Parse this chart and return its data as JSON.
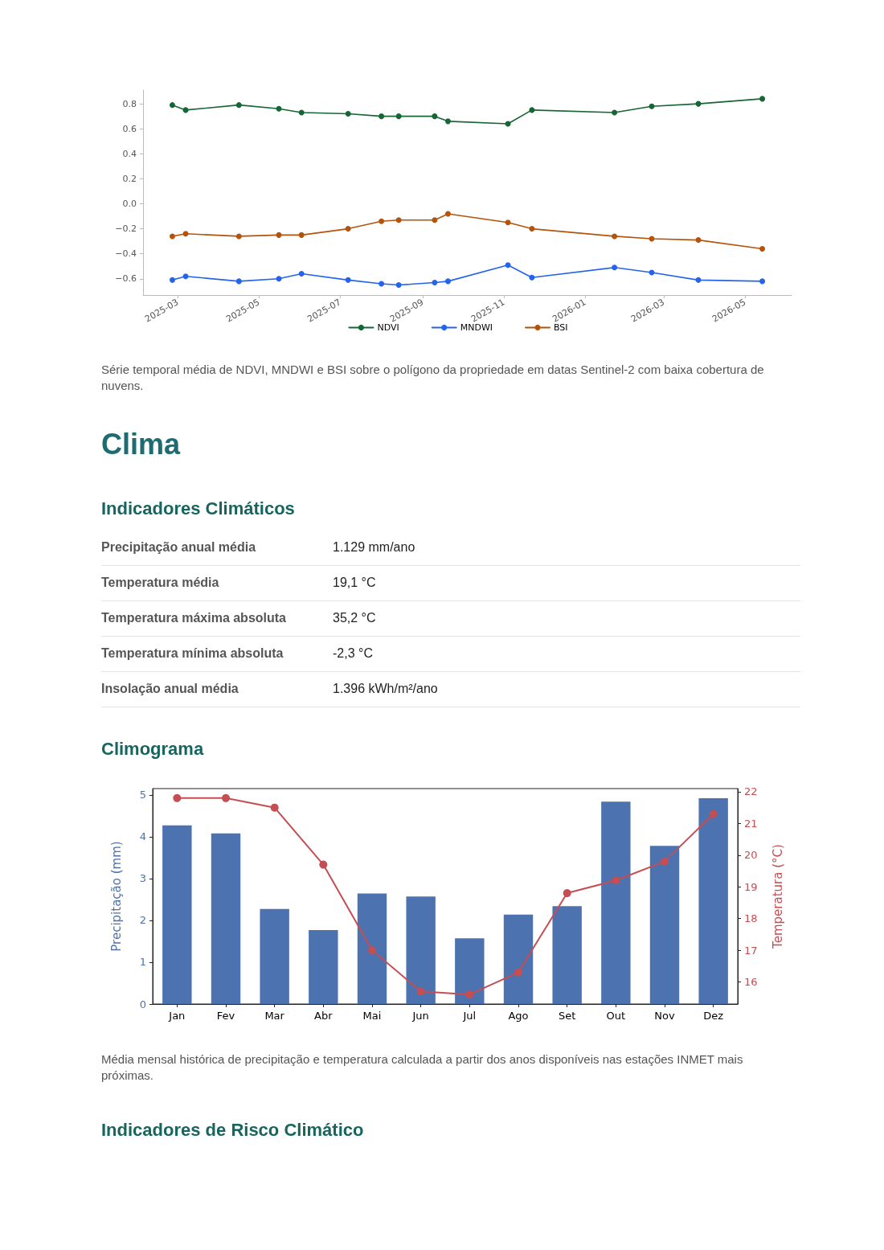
{
  "chart_data": [
    {
      "type": "line",
      "x": [
        "2025-02-25",
        "2025-03-07",
        "2025-04-16",
        "2025-05-16",
        "2025-06-02",
        "2025-07-07",
        "2025-08-01",
        "2025-08-14",
        "2025-09-10",
        "2025-09-20",
        "2025-11-04",
        "2025-11-22",
        "2026-01-23",
        "2026-02-20",
        "2026-03-27",
        "2026-05-14"
      ],
      "series": [
        {
          "name": "NDVI",
          "color": "#166534",
          "values": [
            0.79,
            0.75,
            0.79,
            0.76,
            0.73,
            0.72,
            0.7,
            0.7,
            0.7,
            0.66,
            0.64,
            0.75,
            0.73,
            0.78,
            0.8,
            0.84
          ]
        },
        {
          "name": "MNDWI",
          "color": "#2563eb",
          "values": [
            -0.61,
            -0.58,
            -0.62,
            -0.6,
            -0.56,
            -0.61,
            -0.64,
            -0.65,
            -0.63,
            -0.62,
            -0.49,
            -0.59,
            -0.51,
            -0.55,
            -0.61,
            -0.62
          ]
        },
        {
          "name": "BSI",
          "color": "#b45309",
          "values": [
            -0.26,
            -0.24,
            -0.26,
            -0.25,
            -0.25,
            -0.2,
            -0.14,
            -0.13,
            -0.13,
            -0.08,
            -0.15,
            -0.2,
            -0.26,
            -0.28,
            -0.29,
            -0.36
          ]
        }
      ],
      "xlim": [
        "2025-02-03",
        "2026-06-05"
      ],
      "xticks": [
        "2025-03",
        "2025-05",
        "2025-07",
        "2025-09",
        "2025-11",
        "2026-01",
        "2026-03",
        "2026-05"
      ],
      "ylim": [
        -0.73,
        0.91
      ],
      "yticks": [
        {
          "value": -0.6,
          "label": "−0.6"
        },
        {
          "value": -0.4,
          "label": "−0.4"
        },
        {
          "value": -0.2,
          "label": "−0.2"
        },
        {
          "value": 0,
          "label": "0.0"
        },
        0.2,
        0.4,
        0.6,
        0.8
      ],
      "marker": "circle",
      "grid": false,
      "legend": "bottom",
      "annotations": [
        "Série temporal média de NDVI, MNDWI e BSI sobre o polígono da propriedade em datas Sentinel-2 com baixa cobertura de nuvens."
      ]
    },
    {
      "type": "other",
      "title": "Clima",
      "subtitle": "Indicadores Climáticos",
      "annotations": [
        "Precipitação anual média",
        "1.129 mm/ano",
        "Temperatura média",
        "19,1 °C",
        "Temperatura máxima absoluta",
        "35,2 °C",
        "Temperatura mínima absoluta",
        "-2,3 °C",
        "Insolação anual média",
        "1.396 kWh/m²/ano"
      ]
    },
    {
      "type": "bar",
      "title": "Climograma",
      "categories": [
        "Jan",
        "Fev",
        "Mar",
        "Abr",
        "Mai",
        "Jun",
        "Jul",
        "Ago",
        "Set",
        "Out",
        "Nov",
        "Dez"
      ],
      "series": [
        {
          "type": "bar",
          "color": "#4c72b0",
          "values": [
            4.27,
            4.08,
            2.27,
            1.77,
            2.64,
            2.57,
            1.57,
            2.14,
            2.34,
            4.84,
            3.78,
            4.92
          ]
        },
        {
          "type": "line",
          "axis": "y2",
          "color": "#c44e52",
          "values": [
            21.8,
            21.8,
            21.5,
            19.7,
            17.0,
            15.7,
            15.6,
            16.3,
            18.8,
            19.2,
            19.8,
            21.3
          ]
        }
      ],
      "ylabel": "Precipitação (mm)",
      "y2label": "Temperatura (°C)",
      "ylim": [
        0,
        5.15
      ],
      "yticks": [
        0,
        1,
        2,
        3,
        4,
        5
      ],
      "y2lim": [
        15.3,
        22.1
      ],
      "y2ticks": [
        16,
        17,
        18,
        19,
        20,
        21,
        22
      ],
      "marker": "circle",
      "grid": false,
      "annotations": [
        "Média mensal histórica de precipitação e temperatura calculada a partir dos anos disponíveis nas estações INMET mais próximas."
      ]
    },
    {
      "type": "other",
      "title": "Indicadores de Risco Climático"
    }
  ]
}
